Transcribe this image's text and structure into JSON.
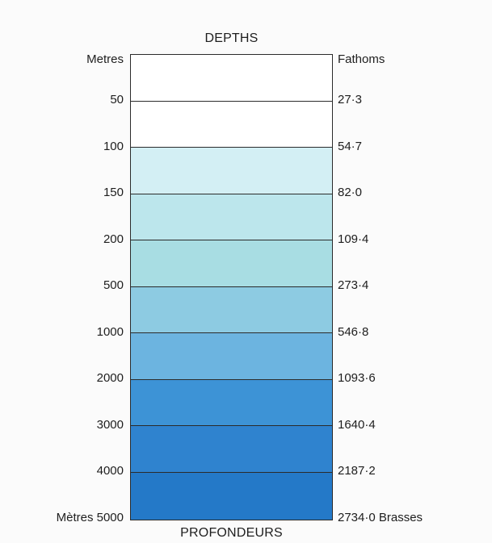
{
  "title": "DEPTHS",
  "subtitle": "PROFONDEURS",
  "units": {
    "left": "Metres",
    "right": "Fathoms"
  },
  "bands": [
    {
      "color": "#ffffff"
    },
    {
      "color": "#ffffff"
    },
    {
      "color": "#d3eff4"
    },
    {
      "color": "#bce6ec"
    },
    {
      "color": "#a8dde3"
    },
    {
      "color": "#8dcbe2"
    },
    {
      "color": "#6cb4e0"
    },
    {
      "color": "#3d93d6"
    },
    {
      "color": "#2f83cf"
    },
    {
      "color": "#2479c8"
    }
  ],
  "levels": [
    {
      "metres": "50",
      "fathoms": "27·3"
    },
    {
      "metres": "100",
      "fathoms": "54·7"
    },
    {
      "metres": "150",
      "fathoms": "82·0"
    },
    {
      "metres": "200",
      "fathoms": "109·4"
    },
    {
      "metres": "500",
      "fathoms": "273·4"
    },
    {
      "metres": "1000",
      "fathoms": "546·8"
    },
    {
      "metres": "2000",
      "fathoms": "1093·6"
    },
    {
      "metres": "3000",
      "fathoms": "1640·4"
    },
    {
      "metres": "4000",
      "fathoms": "2187·2"
    },
    {
      "metres": "Mètres 5000",
      "fathoms": "2734·0 Brasses"
    }
  ]
}
